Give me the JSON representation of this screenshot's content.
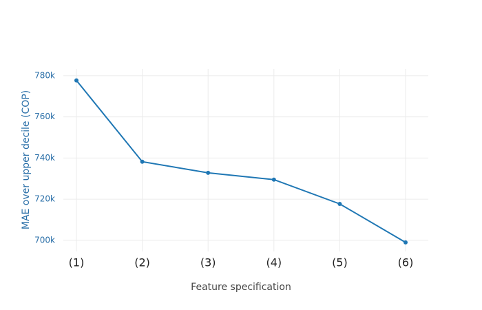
{
  "chart_data": {
    "type": "line",
    "x_label": "Feature specification",
    "y_label": "MAE over upper decile (COP)",
    "categories": [
      "(1)",
      "(2)",
      "(3)",
      "(4)",
      "(5)",
      "(6)"
    ],
    "series": [
      {
        "name": "MAE",
        "color": "#1f77b4",
        "values": [
          777700,
          738200,
          732800,
          729500,
          717700,
          699000
        ]
      }
    ],
    "ylim": [
      694600,
      783300
    ],
    "yticks": [
      {
        "value": 700000,
        "label": "700k"
      },
      {
        "value": 720000,
        "label": "720k"
      },
      {
        "value": 740000,
        "label": "740k"
      },
      {
        "value": 760000,
        "label": "760k"
      },
      {
        "value": 780000,
        "label": "780k"
      }
    ],
    "grid": true
  }
}
